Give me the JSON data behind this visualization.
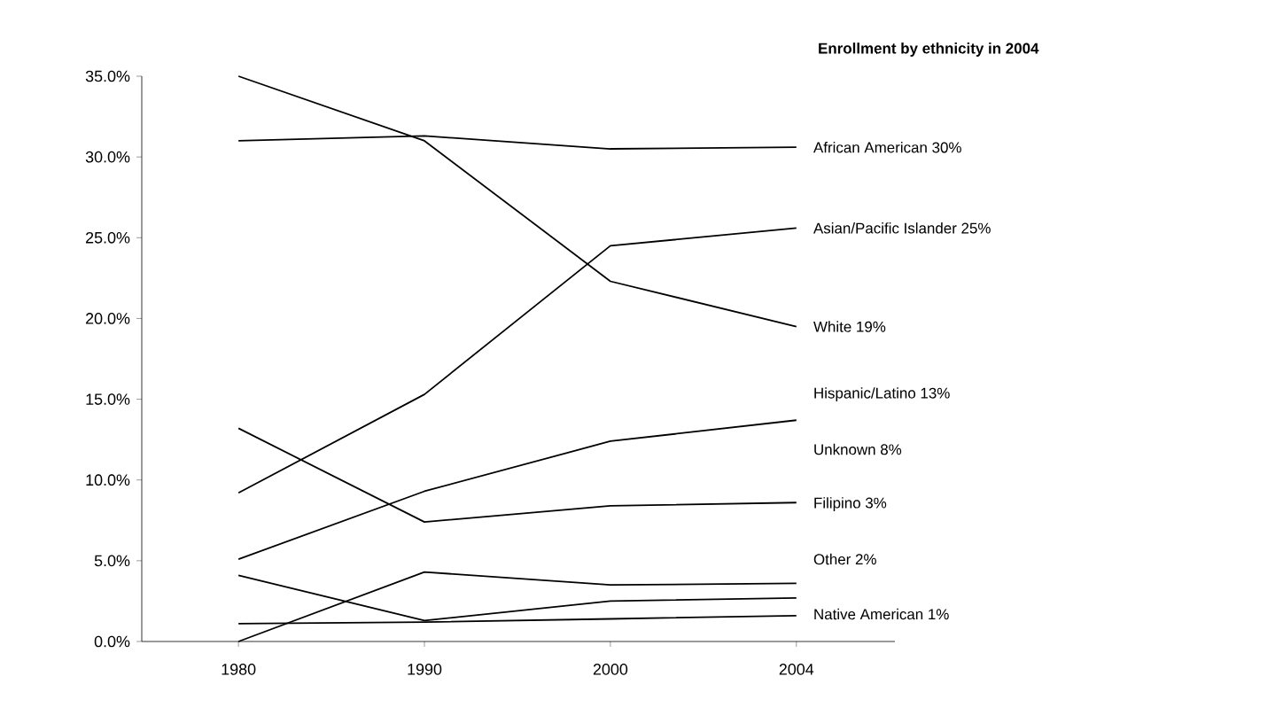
{
  "chart_data": {
    "type": "line",
    "title": "Enrollment by ethnicity in 2004",
    "categories": [
      "1980",
      "1990",
      "2000",
      "2004"
    ],
    "ylim": [
      0,
      35
    ],
    "yticks": [
      {
        "value": 0,
        "label": "0.0%"
      },
      {
        "value": 5,
        "label": "5.0%"
      },
      {
        "value": 10,
        "label": "10.0%"
      },
      {
        "value": 15,
        "label": "15.0%"
      },
      {
        "value": 20,
        "label": "20.0%"
      },
      {
        "value": 25,
        "label": "25.0%"
      },
      {
        "value": 30,
        "label": "30.0%"
      },
      {
        "value": 35,
        "label": "35.0%"
      }
    ],
    "legend": false,
    "grid": false,
    "marker": "none",
    "line_style": "solid",
    "series": [
      {
        "name": "African American 30%",
        "color": "#000000",
        "values": [
          31,
          31.3,
          30.5,
          30.6
        ]
      },
      {
        "name": "Asian/Pacific Islander 25%",
        "color": "#000000",
        "values": [
          9.2,
          15.3,
          24.5,
          25.6
        ]
      },
      {
        "name": "White 19%",
        "color": "#000000",
        "values": [
          35,
          31,
          22.3,
          19.5
        ]
      },
      {
        "name": "Hispanic/Latino 13%",
        "color": "#000000",
        "values": [
          5.1,
          9.3,
          12.4,
          13.7
        ]
      },
      {
        "name": "Unknown 8%",
        "color": "#000000",
        "values": [
          13.2,
          7.4,
          8.4,
          8.6
        ]
      },
      {
        "name": "Filipino 3%",
        "color": "#000000",
        "values": [
          0,
          4.3,
          3.5,
          3.6
        ]
      },
      {
        "name": "Other 2%",
        "color": "#000000",
        "values": [
          4.1,
          1.3,
          2.5,
          2.7
        ]
      },
      {
        "name": "Native American 1%",
        "color": "#000000",
        "values": [
          1.1,
          1.2,
          1.4,
          1.6
        ]
      }
    ]
  }
}
